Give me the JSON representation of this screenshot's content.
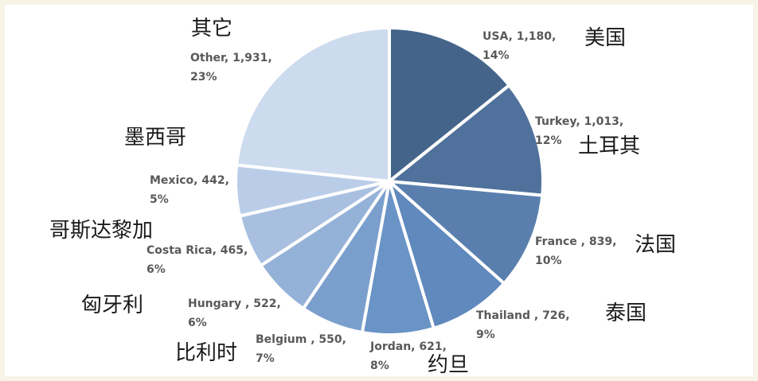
{
  "chart_data": {
    "type": "pie",
    "start_angle_deg": 0,
    "direction": "clockwise",
    "slices": [
      {
        "label": "USA",
        "value": 1180,
        "percent": "14%",
        "value_text": "1,180",
        "zh": "美国",
        "color": "#44648a"
      },
      {
        "label": "Turkey",
        "value": 1013,
        "percent": "12%",
        "value_text": "1,013",
        "zh": "土耳其",
        "color": "#4f719b"
      },
      {
        "label": "France ",
        "value": 839,
        "percent": "10%",
        "value_text": "839",
        "zh": "法国",
        "color": "#5a7fae"
      },
      {
        "label": "Thailand ",
        "value": 726,
        "percent": "9%",
        "value_text": "726",
        "zh": "泰国",
        "color": "#6089bd"
      },
      {
        "label": "Jordan",
        "value": 621,
        "percent": "8%",
        "value_text": "621",
        "zh": "约旦",
        "color": "#6a93c6"
      },
      {
        "label": "Belgium ",
        "value": 550,
        "percent": "7%",
        "value_text": "550",
        "zh": "比利时",
        "color": "#7b9fcd"
      },
      {
        "label": "Hungary ",
        "value": 522,
        "percent": "6%",
        "value_text": "522",
        "zh": "匈牙利",
        "color": "#94b1d8"
      },
      {
        "label": "Costa Rica",
        "value": 465,
        "percent": "6%",
        "value_text": "465",
        "zh": "哥斯达黎加",
        "color": "#a8bfe0"
      },
      {
        "label": "Mexico",
        "value": 442,
        "percent": "5%",
        "value_text": "442",
        "zh": "墨西哥",
        "color": "#bacde8"
      },
      {
        "label": "Other",
        "value": 1931,
        "percent": "23%",
        "value_text": "1,931",
        "zh": "其它",
        "color": "#ccdbed"
      }
    ],
    "legend": "none"
  }
}
